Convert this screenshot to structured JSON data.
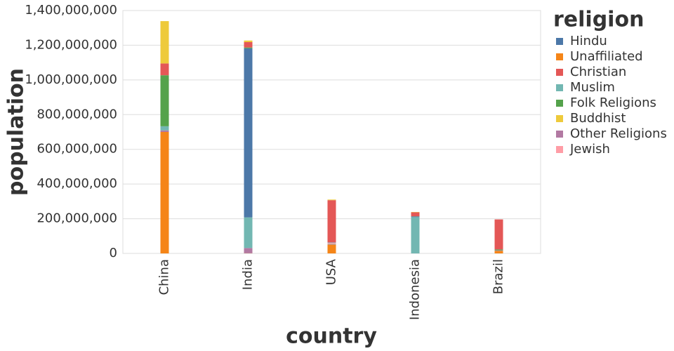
{
  "chart_data": {
    "type": "stacked-bar",
    "x_label": "country",
    "y_label": "population",
    "legend_title": "religion",
    "categories": [
      "China",
      "India",
      "USA",
      "Indonesia",
      "Brazil"
    ],
    "series": [
      {
        "name": "Hindu",
        "color": "#4c78a8",
        "values": [
          0,
          974000000,
          1800000,
          4000000,
          0
        ]
      },
      {
        "name": "Unaffiliated",
        "color": "#f58518",
        "values": [
          700000000,
          1000000,
          51000000,
          0,
          15000000
        ]
      },
      {
        "name": "Christian",
        "color": "#e45756",
        "values": [
          68000000,
          31000000,
          243000000,
          23000000,
          173000000
        ]
      },
      {
        "name": "Muslim",
        "color": "#72b7b2",
        "values": [
          24000000,
          177000000,
          2800000,
          209000000,
          0
        ]
      },
      {
        "name": "Folk Religions",
        "color": "#54a24b",
        "values": [
          294000000,
          5000000,
          600000,
          1000000,
          5000000
        ]
      },
      {
        "name": "Buddhist",
        "color": "#eeca3b",
        "values": [
          244000000,
          9000000,
          3600000,
          2000000,
          0
        ]
      },
      {
        "name": "Other Religions",
        "color": "#b279a2",
        "values": [
          9000000,
          30000000,
          1900000,
          0,
          3000000
        ]
      },
      {
        "name": "Jewish",
        "color": "#ff9da6",
        "values": [
          0,
          0,
          5700000,
          0,
          0
        ]
      }
    ],
    "ylim": [
      0,
      1400000000
    ],
    "yticks": [
      0,
      {
        "value": 200000000,
        "label": "200,000,000"
      },
      {
        "value": 400000000,
        "label": "400,000,000"
      },
      {
        "value": 600000000,
        "label": "600,000,000"
      },
      {
        "value": 800000000,
        "label": "800,000,000"
      },
      {
        "value": 1000000000,
        "label": "1,000,000,000"
      },
      {
        "value": 1200000000,
        "label": "1,200,000,000"
      },
      {
        "value": 1400000000,
        "label": "1,400,000,000"
      }
    ],
    "grid": true
  }
}
